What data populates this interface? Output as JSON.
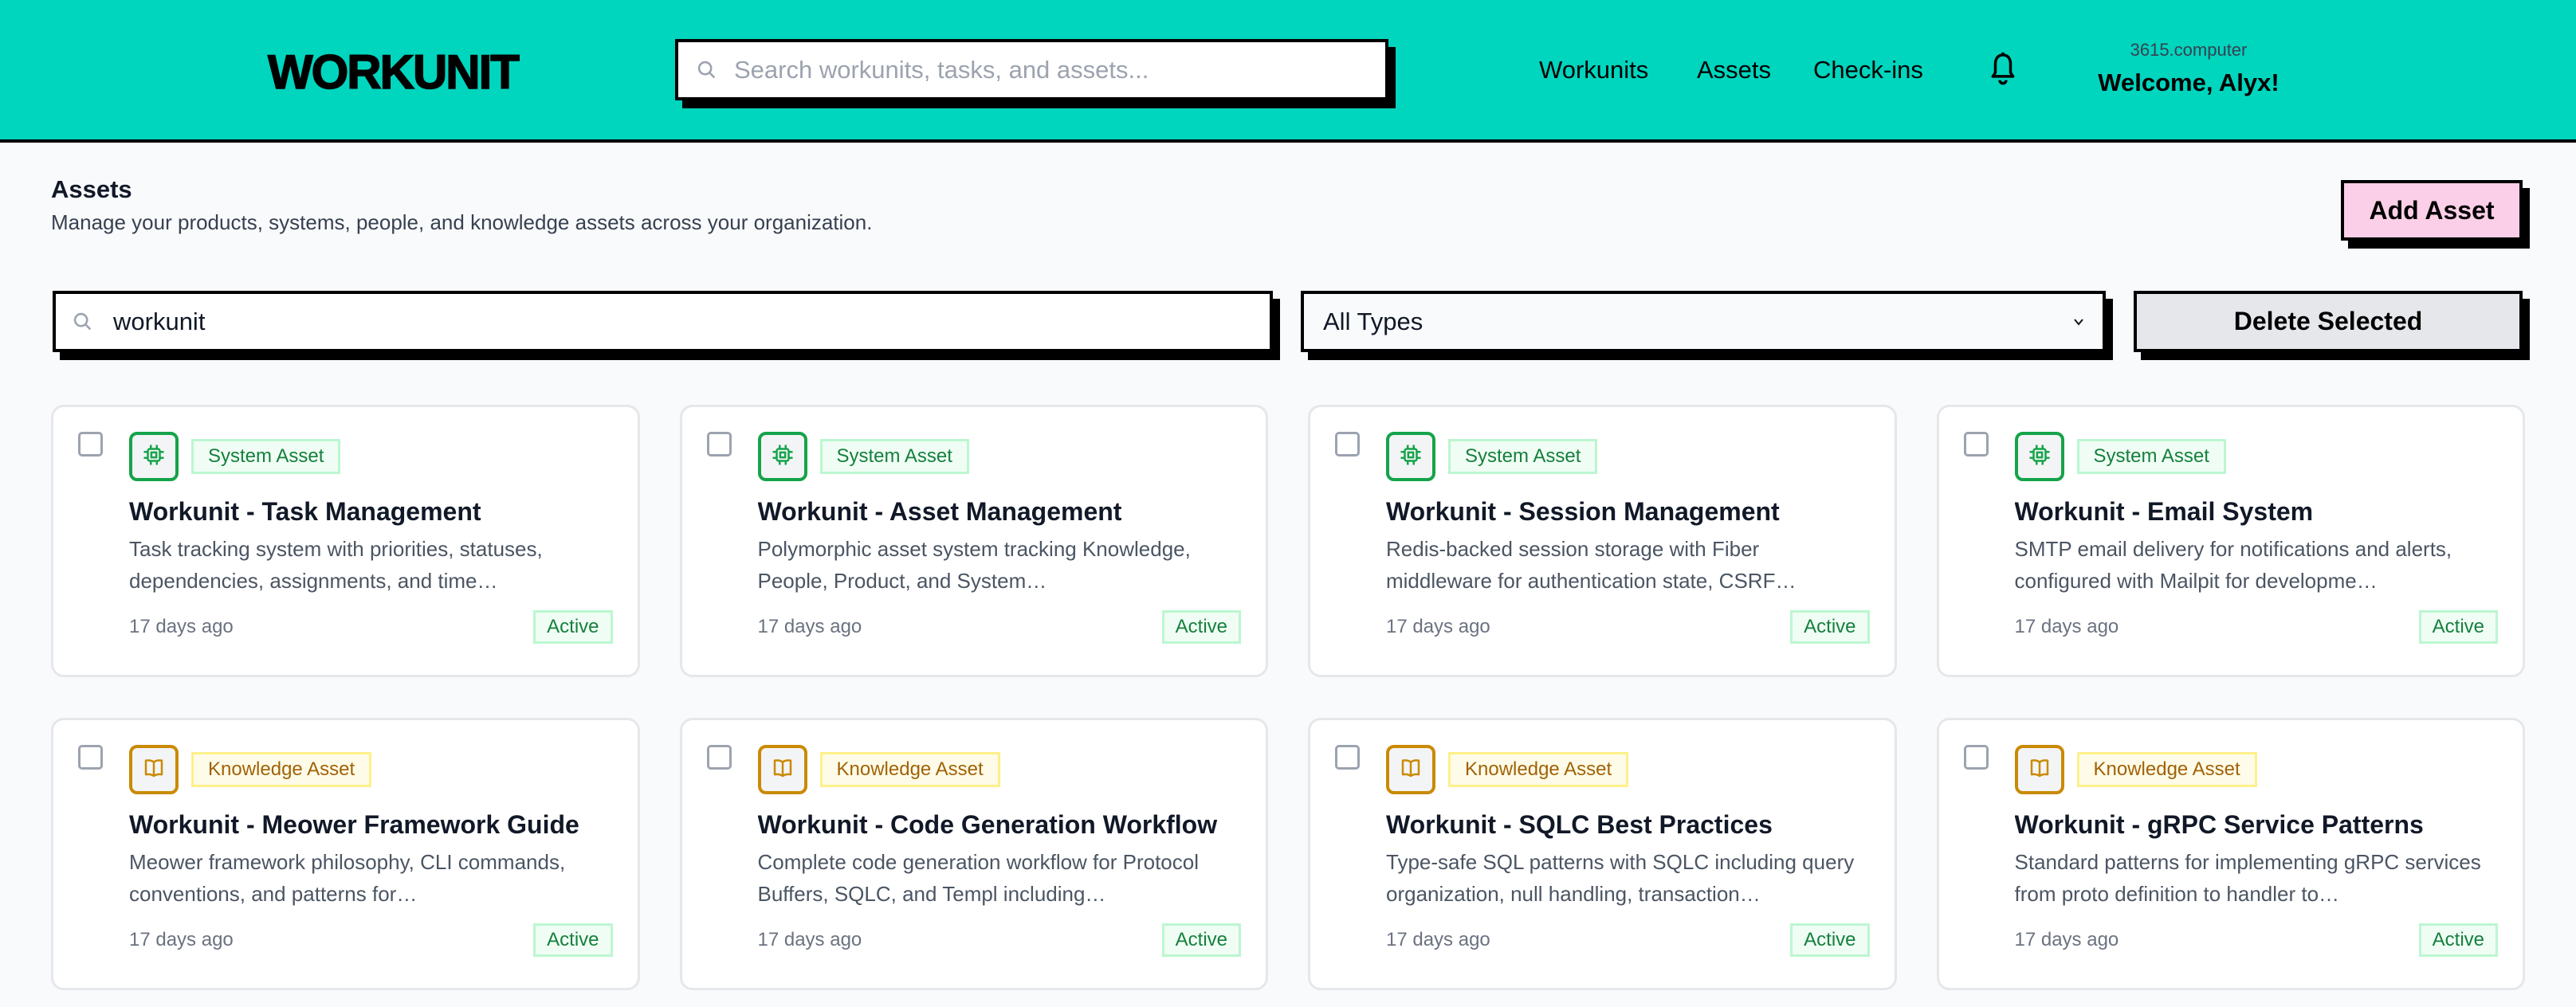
{
  "header": {
    "logo": "WORKUNIT",
    "search_placeholder": "Search workunits, tasks, and assets...",
    "nav": [
      "Workunits",
      "Assets",
      "Check-ins"
    ],
    "org": "3615.computer",
    "welcome": "Welcome, Alyx!"
  },
  "page": {
    "title": "Assets",
    "subtitle": "Manage your products, systems, people, and knowledge assets across your organization.",
    "add_button": "Add Asset"
  },
  "filters": {
    "search_value": "workunit",
    "type_select": "All Types",
    "delete_button": "Delete Selected"
  },
  "colors": {
    "header_bg": "#00d5be",
    "system": {
      "accent": "#16a34a",
      "badge_bg": "#f0fdf4",
      "badge_border": "#bbf7d0",
      "badge_text": "#15803d"
    },
    "knowledge": {
      "accent": "#ca8a04",
      "badge_bg": "#fefce8",
      "badge_border": "#fef08a",
      "badge_text": "#a16207"
    }
  },
  "assets": [
    {
      "kind": "system",
      "icon": "cpu-chip-icon",
      "type": "System Asset",
      "title": "Workunit - Task Management",
      "description": "Task tracking system with priorities, statuses, dependencies, assignments, and time…",
      "date": "17 days ago",
      "status": "Active"
    },
    {
      "kind": "system",
      "icon": "cpu-chip-icon",
      "type": "System Asset",
      "title": "Workunit - Asset Management",
      "description": "Polymorphic asset system tracking Knowledge, People, Product, and System…",
      "date": "17 days ago",
      "status": "Active"
    },
    {
      "kind": "system",
      "icon": "cpu-chip-icon",
      "type": "System Asset",
      "title": "Workunit - Session Management",
      "description": "Redis-backed session storage with Fiber middleware for authentication state, CSRF…",
      "date": "17 days ago",
      "status": "Active"
    },
    {
      "kind": "system",
      "icon": "cpu-chip-icon",
      "type": "System Asset",
      "title": "Workunit - Email System",
      "description": "SMTP email delivery for notifications and alerts, configured with Mailpit for developme…",
      "date": "17 days ago",
      "status": "Active"
    },
    {
      "kind": "knowledge",
      "icon": "book-open-icon",
      "type": "Knowledge Asset",
      "title": "Workunit - Meower Framework Guide",
      "description": "Meower framework philosophy, CLI commands, conventions, and patterns for…",
      "date": "17 days ago",
      "status": "Active"
    },
    {
      "kind": "knowledge",
      "icon": "book-open-icon",
      "type": "Knowledge Asset",
      "title": "Workunit - Code Generation Workflow",
      "description": "Complete code generation workflow for Protocol Buffers, SQLC, and Templ including…",
      "date": "17 days ago",
      "status": "Active"
    },
    {
      "kind": "knowledge",
      "icon": "book-open-icon",
      "type": "Knowledge Asset",
      "title": "Workunit - SQLC Best Practices",
      "description": "Type-safe SQL patterns with SQLC including query organization, null handling, transaction…",
      "date": "17 days ago",
      "status": "Active"
    },
    {
      "kind": "knowledge",
      "icon": "book-open-icon",
      "type": "Knowledge Asset",
      "title": "Workunit - gRPC Service Patterns",
      "description": "Standard patterns for implementing gRPC services from proto definition to handler to…",
      "date": "17 days ago",
      "status": "Active"
    }
  ]
}
